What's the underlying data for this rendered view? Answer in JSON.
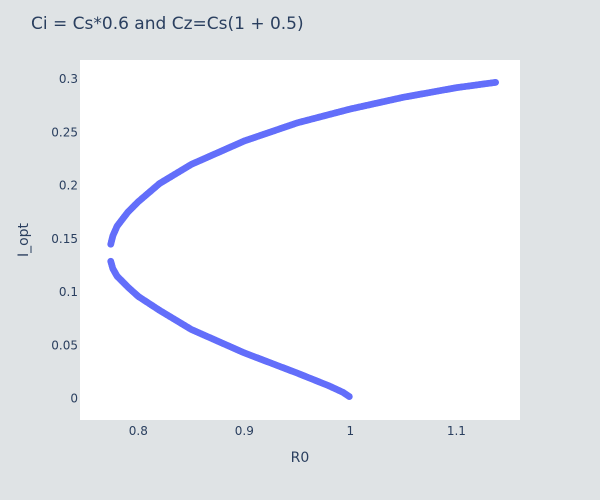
{
  "chart_data": {
    "type": "scatter",
    "title": "Ci = Cs*0.6 and Cz=Cs(1 + 0.5)",
    "xlabel": "R0",
    "ylabel": "I_opt",
    "xlim": [
      0.745,
      1.16
    ],
    "ylim": [
      -0.02,
      0.318
    ],
    "x_ticks": [
      0.8,
      0.9,
      1,
      1.1
    ],
    "x_tick_labels": [
      "0.8",
      "0.9",
      "1",
      "1.1"
    ],
    "y_ticks": [
      0,
      0.05,
      0.1,
      0.15,
      0.2,
      0.25,
      0.3
    ],
    "y_tick_labels": [
      "0",
      "0.05",
      "0.1",
      "0.15",
      "0.2",
      "0.25",
      "0.3"
    ],
    "grid": false,
    "marker_color": "#636efa",
    "plot_background": "#ffffff",
    "paper_background": "#dfe3e5",
    "series": [
      {
        "points": [
          {
            "x": 1.137,
            "y": 0.297
          },
          {
            "x": 1.1,
            "y": 0.292
          },
          {
            "x": 1.05,
            "y": 0.283
          },
          {
            "x": 1.0,
            "y": 0.272
          },
          {
            "x": 0.95,
            "y": 0.259
          },
          {
            "x": 0.9,
            "y": 0.242
          },
          {
            "x": 0.85,
            "y": 0.22
          },
          {
            "x": 0.82,
            "y": 0.202
          },
          {
            "x": 0.8,
            "y": 0.185
          },
          {
            "x": 0.79,
            "y": 0.175
          },
          {
            "x": 0.78,
            "y": 0.162
          },
          {
            "x": 0.776,
            "y": 0.153
          },
          {
            "x": 0.774,
            "y": 0.145
          },
          {
            "x": 0.774,
            "y": 0.129
          },
          {
            "x": 0.776,
            "y": 0.122
          },
          {
            "x": 0.78,
            "y": 0.115
          },
          {
            "x": 0.79,
            "y": 0.105
          },
          {
            "x": 0.8,
            "y": 0.096
          },
          {
            "x": 0.82,
            "y": 0.083
          },
          {
            "x": 0.85,
            "y": 0.065
          },
          {
            "x": 0.9,
            "y": 0.043
          },
          {
            "x": 0.95,
            "y": 0.024
          },
          {
            "x": 0.98,
            "y": 0.012
          },
          {
            "x": 0.993,
            "y": 0.006
          },
          {
            "x": 0.999,
            "y": 0.002
          }
        ]
      }
    ]
  }
}
